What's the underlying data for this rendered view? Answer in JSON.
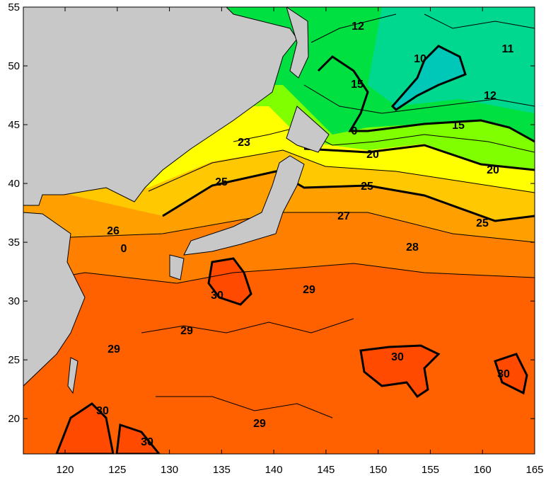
{
  "map": {
    "lon_range": [
      116,
      165
    ],
    "lat_range": [
      17,
      55
    ],
    "x_ticks": [
      "120",
      "125",
      "130",
      "135",
      "140",
      "145",
      "150",
      "155",
      "160",
      "165"
    ],
    "y_ticks": [
      "55",
      "50",
      "45",
      "40",
      "35",
      "30",
      "25",
      "20"
    ],
    "contour_labels": [
      "12",
      "11",
      "10",
      "15",
      "12",
      "15",
      "0",
      "20",
      "20",
      "23",
      "25",
      "25",
      "25",
      "27",
      "26",
      "0",
      "28",
      "29",
      "29",
      "29",
      "29",
      "30",
      "30",
      "30",
      "30",
      "30"
    ],
    "colors": {
      "land": "#c8c8c8",
      "cold_teal": "#00d8a0",
      "green": "#00e040",
      "light_green": "#80ff00",
      "yellow": "#ffff00",
      "gold": "#ffc800",
      "orange": "#ffa000",
      "dark_orange": "#ff8000",
      "warm": "#ff6000",
      "hot": "#ff4a00"
    }
  }
}
